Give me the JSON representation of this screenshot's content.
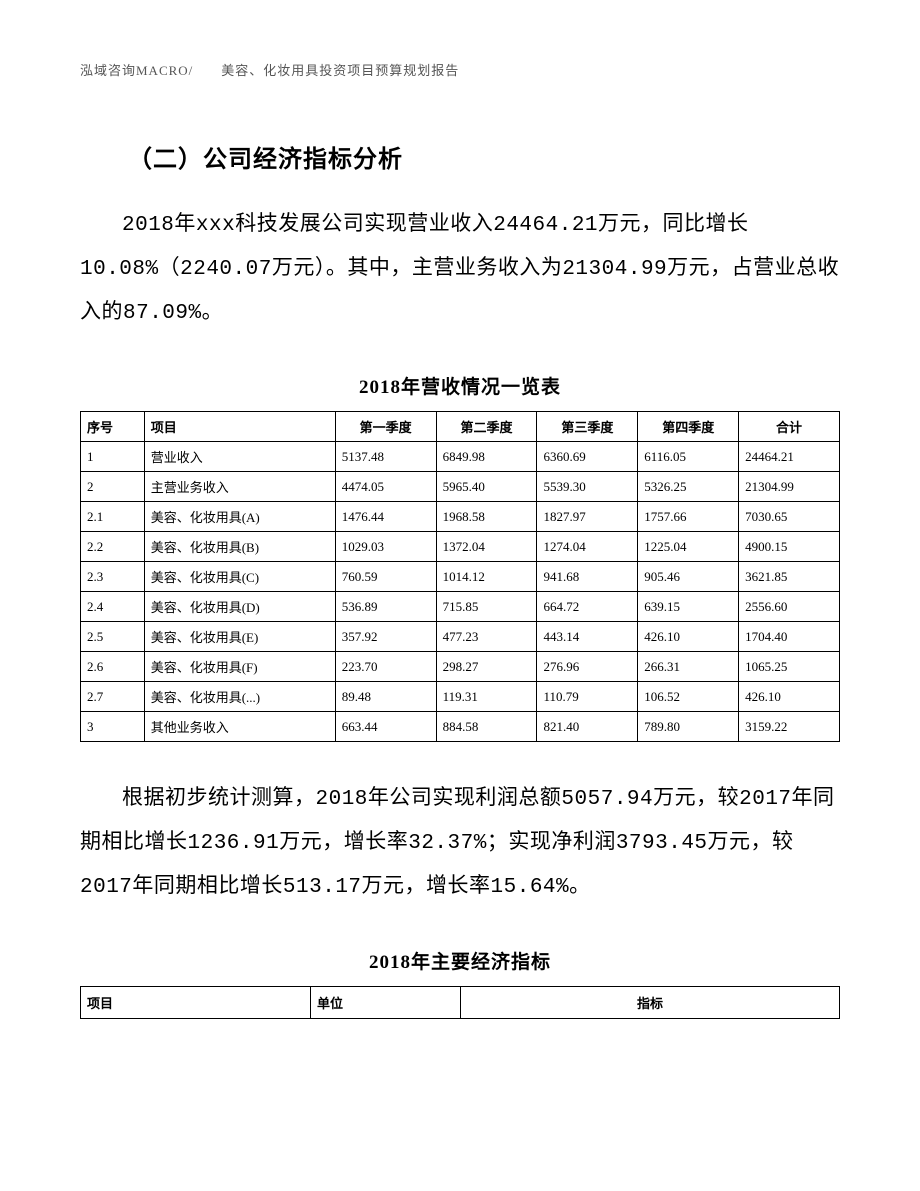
{
  "header": "泓域咨询MACRO/　　美容、化妆用具投资项目预算规划报告",
  "section_title": "（二）公司经济指标分析",
  "paragraph1": "2018年xxx科技发展公司实现营业收入24464.21万元，同比增长10.08%（2240.07万元）。其中，主营业务收入为21304.99万元，占营业总收入的87.09%。",
  "table1": {
    "title": "2018年营收情况一览表",
    "headers": [
      "序号",
      "项目",
      "第一季度",
      "第二季度",
      "第三季度",
      "第四季度",
      "合计"
    ],
    "rows": [
      [
        "1",
        "营业收入",
        "5137.48",
        "6849.98",
        "6360.69",
        "6116.05",
        "24464.21"
      ],
      [
        "2",
        "主营业务收入",
        "4474.05",
        "5965.40",
        "5539.30",
        "5326.25",
        "21304.99"
      ],
      [
        "2.1",
        "美容、化妆用具(A)",
        "1476.44",
        "1968.58",
        "1827.97",
        "1757.66",
        "7030.65"
      ],
      [
        "2.2",
        "美容、化妆用具(B)",
        "1029.03",
        "1372.04",
        "1274.04",
        "1225.04",
        "4900.15"
      ],
      [
        "2.3",
        "美容、化妆用具(C)",
        "760.59",
        "1014.12",
        "941.68",
        "905.46",
        "3621.85"
      ],
      [
        "2.4",
        "美容、化妆用具(D)",
        "536.89",
        "715.85",
        "664.72",
        "639.15",
        "2556.60"
      ],
      [
        "2.5",
        "美容、化妆用具(E)",
        "357.92",
        "477.23",
        "443.14",
        "426.10",
        "1704.40"
      ],
      [
        "2.6",
        "美容、化妆用具(F)",
        "223.70",
        "298.27",
        "276.96",
        "266.31",
        "1065.25"
      ],
      [
        "2.7",
        "美容、化妆用具(...)",
        "89.48",
        "119.31",
        "110.79",
        "106.52",
        "426.10"
      ],
      [
        "3",
        "其他业务收入",
        "663.44",
        "884.58",
        "821.40",
        "789.80",
        "3159.22"
      ]
    ]
  },
  "paragraph2": "根据初步统计测算，2018年公司实现利润总额5057.94万元，较2017年同期相比增长1236.91万元，增长率32.37%；实现净利润3793.45万元，较2017年同期相比增长513.17万元，增长率15.64%。",
  "table2": {
    "title": "2018年主要经济指标",
    "headers": [
      "项目",
      "单位",
      "指标"
    ]
  }
}
